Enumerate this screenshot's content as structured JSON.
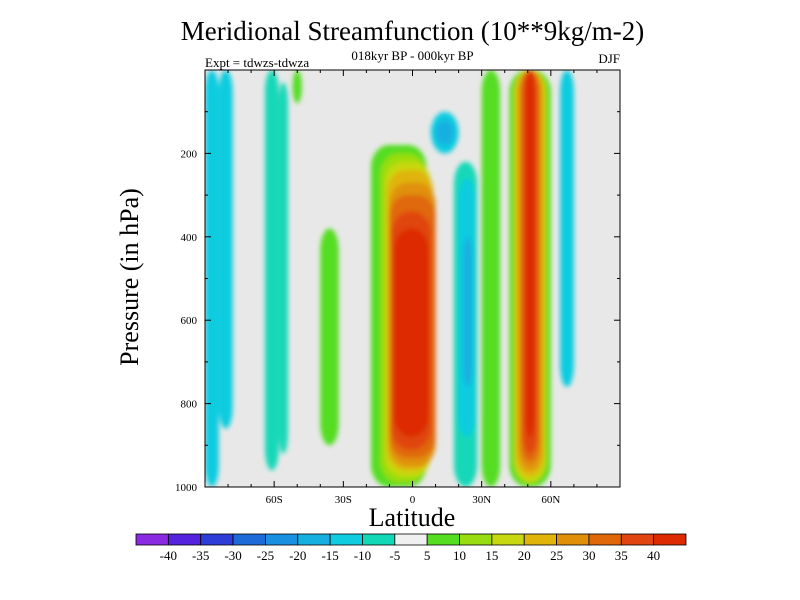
{
  "chart_data": {
    "type": "heatmap",
    "title": "Meridional Streamfunction (10**9kg/m-2)",
    "subtitle": "018kyr BP - 000kyr BP",
    "experiment": "Expt = tdwzs-tdwza",
    "season": "DJF",
    "xlabel": "Latitude",
    "ylabel": "Pressure (in hPa)",
    "xlim": [
      -90,
      90
    ],
    "ylim": [
      1000,
      0
    ],
    "y_reversed": true,
    "x_ticks": [
      -60,
      -30,
      0,
      30,
      60
    ],
    "x_tick_labels": [
      "60S",
      "30S",
      "0",
      "30N",
      "60N"
    ],
    "y_ticks": [
      200,
      400,
      600,
      800,
      1000
    ],
    "y_tick_labels": [
      "200",
      "400",
      "600",
      "800",
      "1000"
    ],
    "background_color": "#e8e8e8",
    "colorbar": {
      "levels": [
        "-40",
        "-35",
        "-30",
        "-25",
        "-20",
        "-15",
        "-10",
        "-5",
        "5",
        "10",
        "15",
        "20",
        "25",
        "30",
        "35",
        "40"
      ],
      "colors": [
        "#8a2be2",
        "#5522dd",
        "#2e3cd8",
        "#1e6ad8",
        "#1a90e0",
        "#15b0e0",
        "#10cce0",
        "#12d8b8",
        "#f0f0f0",
        "#55dd22",
        "#99dd11",
        "#c8d810",
        "#e0b408",
        "#e09008",
        "#e06808",
        "#e04410",
        "#dd2a00"
      ]
    },
    "cells": [
      {
        "lat": [
          -90,
          -84
        ],
        "p": [
          0,
          1000
        ],
        "level": 6
      },
      {
        "lat": [
          -84,
          -78
        ],
        "p": [
          0,
          860
        ],
        "level": 6
      },
      {
        "lat": [
          -64,
          -58
        ],
        "p": [
          0,
          960
        ],
        "level": 7
      },
      {
        "lat": [
          -58,
          -54
        ],
        "p": [
          30,
          920
        ],
        "level": 7
      },
      {
        "lat": [
          -52,
          -48
        ],
        "p": [
          0,
          80
        ],
        "level": 9
      },
      {
        "lat": [
          -40,
          -32
        ],
        "p": [
          380,
          900
        ],
        "level": 9
      },
      {
        "lat": [
          -18,
          6
        ],
        "p": [
          180,
          1000
        ],
        "level": 9
      },
      {
        "lat": [
          -14,
          6
        ],
        "p": [
          200,
          990
        ],
        "level": 10
      },
      {
        "lat": [
          -12,
          8
        ],
        "p": [
          220,
          975
        ],
        "level": 11
      },
      {
        "lat": [
          -11,
          9
        ],
        "p": [
          240,
          960
        ],
        "level": 12
      },
      {
        "lat": [
          -10,
          10
        ],
        "p": [
          270,
          950
        ],
        "level": 13
      },
      {
        "lat": [
          -10,
          10
        ],
        "p": [
          300,
          930
        ],
        "level": 14
      },
      {
        "lat": [
          -9,
          8
        ],
        "p": [
          340,
          910
        ],
        "level": 15
      },
      {
        "lat": [
          -8,
          7
        ],
        "p": [
          380,
          880
        ],
        "level": 16
      },
      {
        "lat": [
          8,
          20
        ],
        "p": [
          100,
          200
        ],
        "level": 6
      },
      {
        "lat": [
          10,
          18
        ],
        "p": [
          120,
          180
        ],
        "level": 5
      },
      {
        "lat": [
          18,
          28
        ],
        "p": [
          220,
          1000
        ],
        "level": 7
      },
      {
        "lat": [
          20,
          27
        ],
        "p": [
          260,
          880
        ],
        "level": 6
      },
      {
        "lat": [
          22,
          26
        ],
        "p": [
          400,
          760
        ],
        "level": 5
      },
      {
        "lat": [
          30,
          38
        ],
        "p": [
          0,
          1000
        ],
        "level": 9
      },
      {
        "lat": [
          42,
          60
        ],
        "p": [
          0,
          1000
        ],
        "level": 9
      },
      {
        "lat": [
          44,
          58
        ],
        "p": [
          0,
          990
        ],
        "level": 11
      },
      {
        "lat": [
          45,
          57
        ],
        "p": [
          0,
          975
        ],
        "level": 12
      },
      {
        "lat": [
          46,
          56
        ],
        "p": [
          0,
          960
        ],
        "level": 13
      },
      {
        "lat": [
          47,
          55
        ],
        "p": [
          0,
          940
        ],
        "level": 14
      },
      {
        "lat": [
          48,
          54
        ],
        "p": [
          0,
          920
        ],
        "level": 15
      },
      {
        "lat": [
          49,
          53
        ],
        "p": [
          0,
          880
        ],
        "level": 16
      },
      {
        "lat": [
          64,
          70
        ],
        "p": [
          0,
          760
        ],
        "level": 6
      }
    ]
  }
}
